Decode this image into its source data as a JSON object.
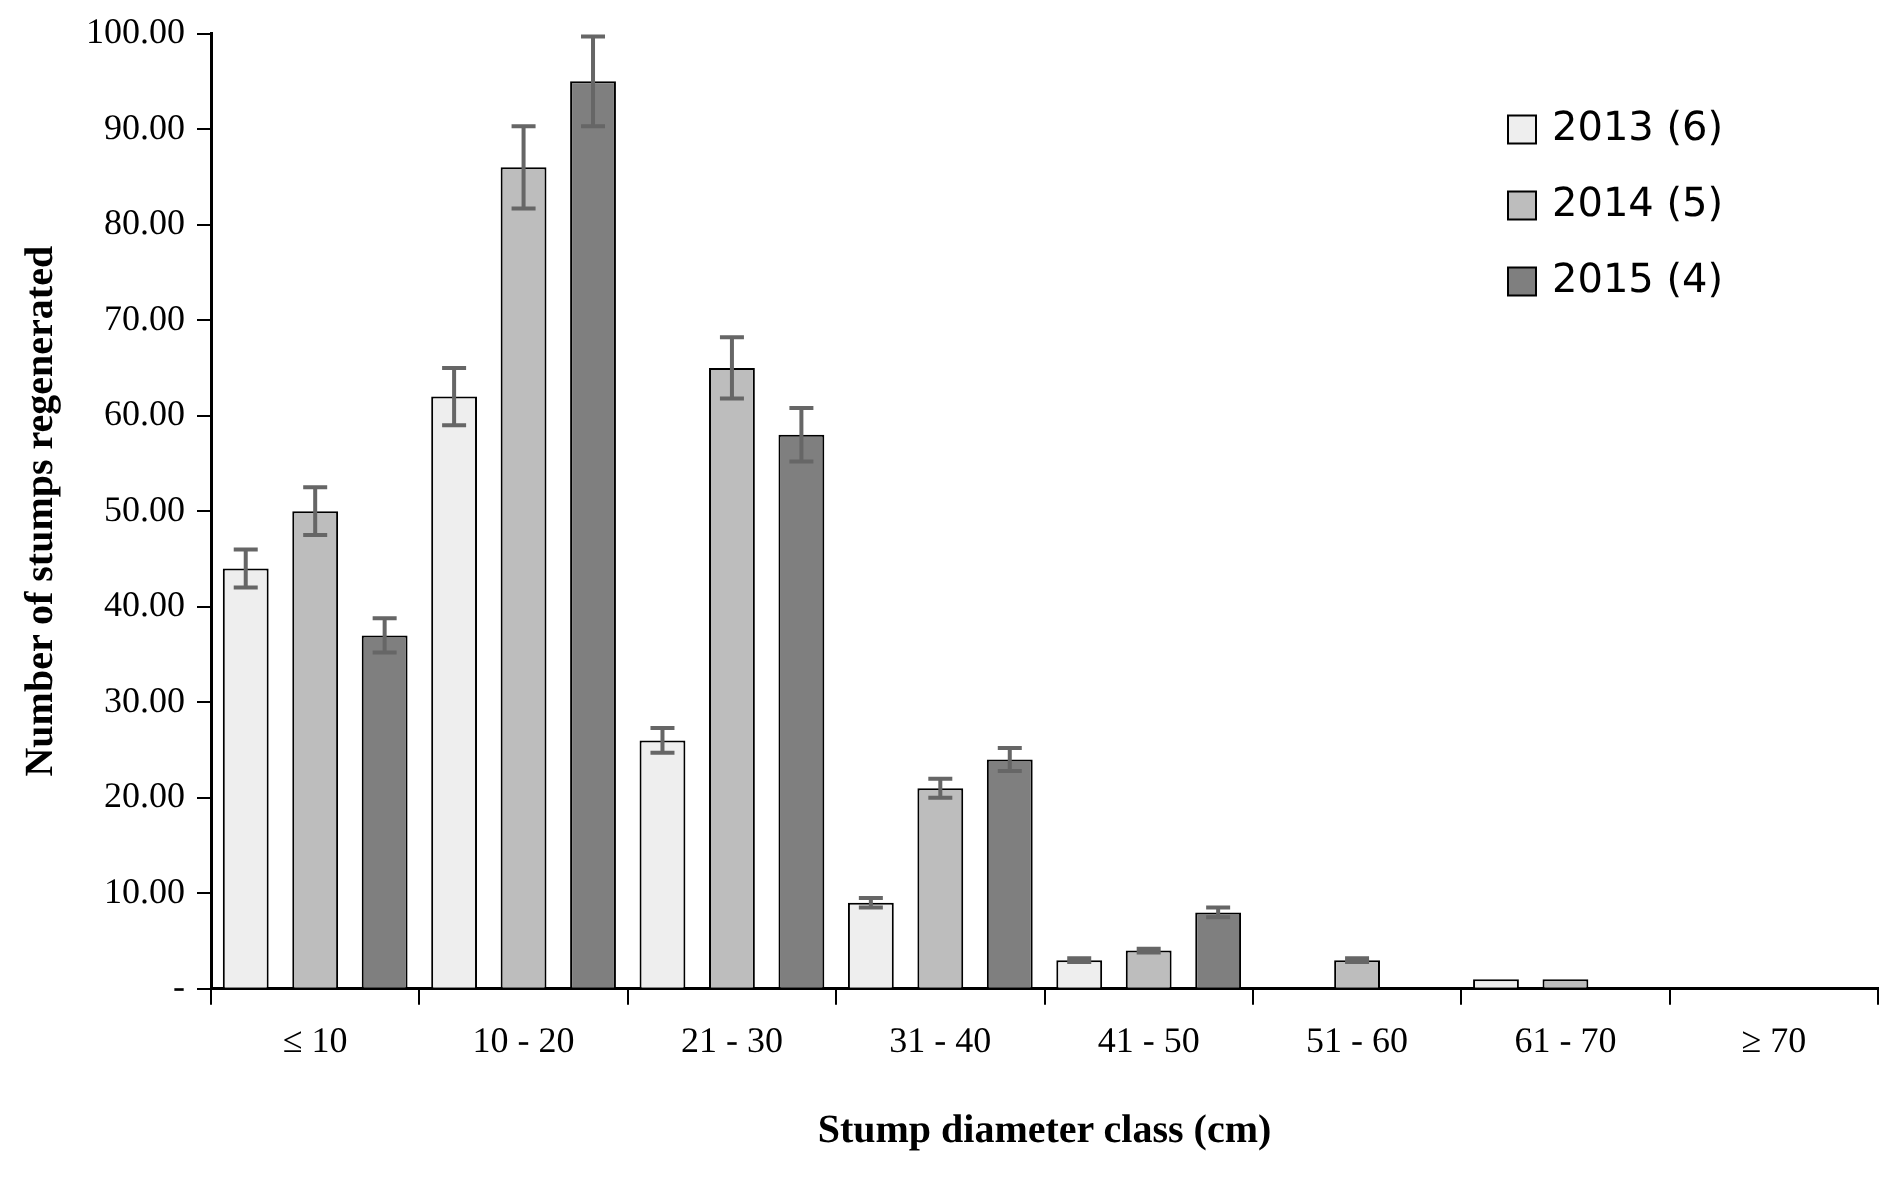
{
  "chart_data": {
    "type": "bar",
    "xlabel": "Stump diameter class (cm)",
    "ylabel": "Number of stumps regenerated",
    "categories": [
      "≤ 10",
      "10 - 20",
      "21 - 30",
      "31 - 40",
      "41 - 50",
      "51 - 60",
      "61 - 70",
      "≥ 70"
    ],
    "series": [
      {
        "name": "2013 (6)",
        "color": "#eeeeee",
        "values": [
          44,
          62,
          26,
          9,
          3,
          0,
          1,
          0
        ],
        "errors": [
          2,
          3,
          1.3,
          0.5,
          0.2,
          null,
          null,
          null
        ]
      },
      {
        "name": "2014 (5)",
        "color": "#bdbdbd",
        "values": [
          50,
          86,
          65,
          21,
          4,
          3,
          1,
          0
        ],
        "errors": [
          2.5,
          4.3,
          3.2,
          1,
          0.2,
          0.2,
          null,
          null
        ]
      },
      {
        "name": "2015 (4)",
        "color": "#7f7f7f",
        "values": [
          37,
          95,
          58,
          24,
          8,
          0,
          0,
          0
        ],
        "errors": [
          1.8,
          4.7,
          2.8,
          1.2,
          0.5,
          null,
          null,
          null
        ]
      }
    ],
    "ylim": [
      0,
      100
    ],
    "yticks": [
      {
        "value": 0,
        "label": "-"
      },
      {
        "value": 10,
        "label": "10.00"
      },
      {
        "value": 20,
        "label": "20.00"
      },
      {
        "value": 30,
        "label": "30.00"
      },
      {
        "value": 40,
        "label": "40.00"
      },
      {
        "value": 50,
        "label": "50.00"
      },
      {
        "value": 60,
        "label": "60.00"
      },
      {
        "value": 70,
        "label": "70.00"
      },
      {
        "value": 80,
        "label": "80.00"
      },
      {
        "value": 90,
        "label": "90.00"
      },
      {
        "value": 100,
        "label": "100.00"
      }
    ],
    "grid": false,
    "legend": "top right"
  }
}
